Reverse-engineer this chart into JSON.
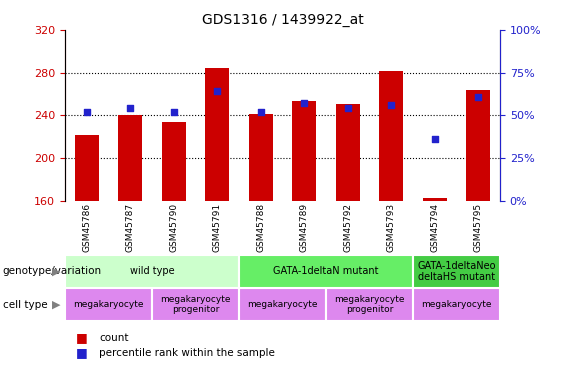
{
  "title": "GDS1316 / 1439922_at",
  "samples": [
    "GSM45786",
    "GSM45787",
    "GSM45790",
    "GSM45791",
    "GSM45788",
    "GSM45789",
    "GSM45792",
    "GSM45793",
    "GSM45794",
    "GSM45795"
  ],
  "counts": [
    222,
    240,
    234,
    284,
    241,
    253,
    251,
    282,
    162,
    264
  ],
  "percentiles": [
    52,
    54,
    52,
    64,
    52,
    57,
    54,
    56,
    36,
    61
  ],
  "ylim_left": [
    160,
    320
  ],
  "ylim_right": [
    0,
    100
  ],
  "yticks_left": [
    160,
    200,
    240,
    280,
    320
  ],
  "yticks_right": [
    0,
    25,
    50,
    75,
    100
  ],
  "bar_color": "#cc0000",
  "dot_color": "#2222cc",
  "genotype_groups": [
    {
      "label": "wild type",
      "start": 0,
      "end": 4,
      "color": "#ccffcc"
    },
    {
      "label": "GATA-1deltaN mutant",
      "start": 4,
      "end": 8,
      "color": "#66ee66"
    },
    {
      "label": "GATA-1deltaNeo\ndeltaHS mutant",
      "start": 8,
      "end": 10,
      "color": "#44cc44"
    }
  ],
  "cell_type_groups": [
    {
      "label": "megakaryocyte",
      "start": 0,
      "end": 2,
      "color": "#dd88ee"
    },
    {
      "label": "megakaryocyte\nprogenitor",
      "start": 2,
      "end": 4,
      "color": "#dd88ee"
    },
    {
      "label": "megakaryocyte",
      "start": 4,
      "end": 6,
      "color": "#dd88ee"
    },
    {
      "label": "megakaryocyte\nprogenitor",
      "start": 6,
      "end": 8,
      "color": "#dd88ee"
    },
    {
      "label": "megakaryocyte",
      "start": 8,
      "end": 10,
      "color": "#dd88ee"
    }
  ],
  "left_label_color": "#cc0000",
  "right_label_color": "#2222cc",
  "xlab_bg": "#c8c8c8",
  "xlab_divider": "#ffffff"
}
